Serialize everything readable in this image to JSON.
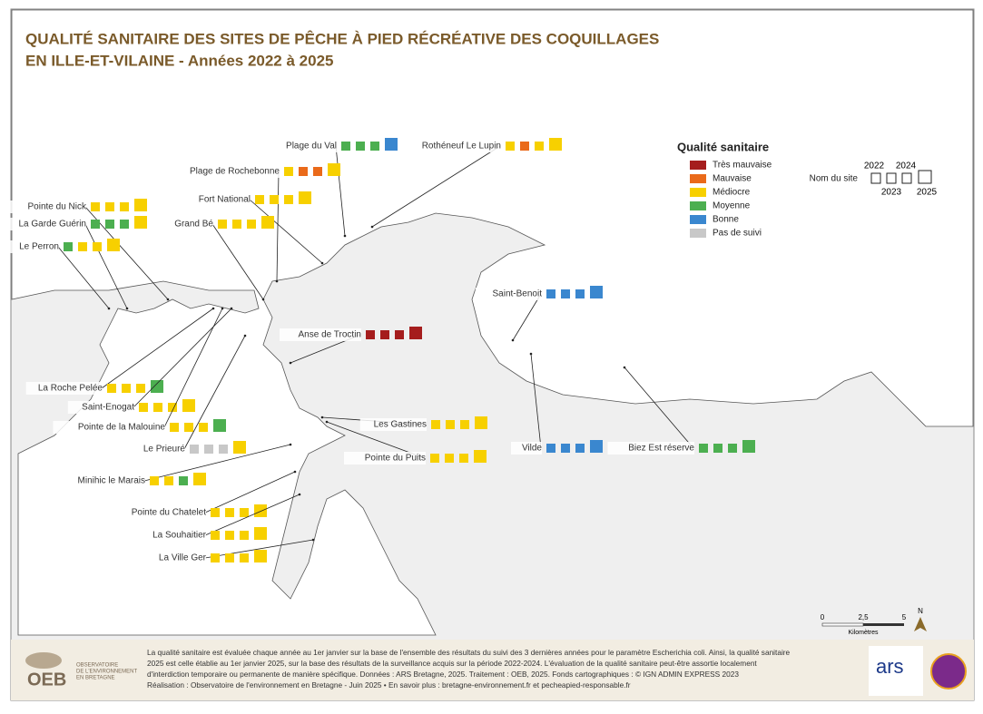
{
  "header": {
    "title_line1": "QUALITÉ SANITAIRE DES SITES DE PÊCHE À PIED RÉCRÉATIVE DES COQUILLAGES",
    "title_line2": "EN ILLE-ET-VILAINE - Années 2022 à 2025"
  },
  "legend": {
    "title": "Qualité sanitaire",
    "items": [
      {
        "label": "Très mauvaise",
        "color": "#a51d1d"
      },
      {
        "label": "Mauvaise",
        "color": "#ea6a1a"
      },
      {
        "label": "Médiocre",
        "color": "#f7d000"
      },
      {
        "label": "Moyenne",
        "color": "#4caf50"
      },
      {
        "label": "Bonne",
        "color": "#3a87cf"
      },
      {
        "label": "Pas de suivi",
        "color": "#c8c8c8"
      }
    ]
  },
  "year_legend": {
    "site_label": "Nom du site",
    "years": [
      "2022",
      "2023",
      "2024",
      "2025"
    ]
  },
  "sites": [
    {
      "name": "Plage du Val",
      "colors": [
        "#4caf50",
        "#4caf50",
        "#4caf50",
        "#3a87cf"
      ]
    },
    {
      "name": "Rothéneuf Le Lupin",
      "colors": [
        "#f7d000",
        "#ea6a1a",
        "#f7d000",
        "#f7d000"
      ]
    },
    {
      "name": "Plage de Rochebonne",
      "colors": [
        "#f7d000",
        "#ea6a1a",
        "#ea6a1a",
        "#f7d000"
      ]
    },
    {
      "name": "Fort National",
      "colors": [
        "#f7d000",
        "#f7d000",
        "#f7d000",
        "#f7d000"
      ]
    },
    {
      "name": "Grand Bé",
      "colors": [
        "#f7d000",
        "#f7d000",
        "#f7d000",
        "#f7d000"
      ]
    },
    {
      "name": "Pointe du Nick",
      "colors": [
        "#f7d000",
        "#f7d000",
        "#f7d000",
        "#f7d000"
      ]
    },
    {
      "name": "La Garde Guérin",
      "colors": [
        "#4caf50",
        "#4caf50",
        "#4caf50",
        "#f7d000"
      ]
    },
    {
      "name": "Le Perron",
      "colors": [
        "#4caf50",
        "#f7d000",
        "#f7d000",
        "#f7d000"
      ]
    },
    {
      "name": "Saint-Benoit",
      "colors": [
        "#3a87cf",
        "#3a87cf",
        "#3a87cf",
        "#3a87cf"
      ]
    },
    {
      "name": "Anse de Troctin",
      "colors": [
        "#a51d1d",
        "#a51d1d",
        "#a51d1d",
        "#a51d1d"
      ]
    },
    {
      "name": "La Roche Pelée",
      "colors": [
        "#f7d000",
        "#f7d000",
        "#f7d000",
        "#4caf50"
      ]
    },
    {
      "name": "Saint-Enogat",
      "colors": [
        "#f7d000",
        "#f7d000",
        "#f7d000",
        "#f7d000"
      ]
    },
    {
      "name": "Pointe de la Malouine",
      "colors": [
        "#f7d000",
        "#f7d000",
        "#f7d000",
        "#4caf50"
      ]
    },
    {
      "name": "Le Prieuré",
      "colors": [
        "#c8c8c8",
        "#c8c8c8",
        "#c8c8c8",
        "#f7d000"
      ]
    },
    {
      "name": "Minihic le Marais",
      "colors": [
        "#f7d000",
        "#f7d000",
        "#4caf50",
        "#f7d000"
      ]
    },
    {
      "name": "Les Gastines",
      "colors": [
        "#f7d000",
        "#f7d000",
        "#f7d000",
        "#f7d000"
      ]
    },
    {
      "name": "Pointe du Puits",
      "colors": [
        "#f7d000",
        "#f7d000",
        "#f7d000",
        "#f7d000"
      ]
    },
    {
      "name": "Vilde",
      "colors": [
        "#3a87cf",
        "#3a87cf",
        "#3a87cf",
        "#3a87cf"
      ]
    },
    {
      "name": "Biez Est réserve",
      "colors": [
        "#4caf50",
        "#4caf50",
        "#4caf50",
        "#4caf50"
      ]
    },
    {
      "name": "Pointe du Chatelet",
      "colors": [
        "#f7d000",
        "#f7d000",
        "#f7d000",
        "#f7d000"
      ]
    },
    {
      "name": "La Souhaitier",
      "colors": [
        "#f7d000",
        "#f7d000",
        "#f7d000",
        "#f7d000"
      ]
    },
    {
      "name": "La Ville Ger",
      "colors": [
        "#f7d000",
        "#f7d000",
        "#f7d000",
        "#f7d000"
      ]
    }
  ],
  "scale": {
    "ticks": [
      "0",
      "2,5",
      "5"
    ],
    "unit": "Kilomètres",
    "north": "N"
  },
  "footer": {
    "logo": "OEB",
    "logo_lines": [
      "OBSERVATOIRE",
      "DE L'ENVIRONNEMENT",
      "EN BRETAGNE"
    ],
    "lines": [
      "La qualité sanitaire est évaluée chaque année au 1er janvier sur la base de l'ensemble des résultats du suivi des 3 dernières années pour le paramètre Escherichia coli. Ainsi, la qualité sanitaire",
      "2025 est celle établie au 1er janvier 2025, sur la base des résultats de la surveillance acquis sur la période 2022-2024. L'évaluation de la qualité sanitaire peut-être assortie localement",
      "d'interdiction temporaire ou permanente de manière spécifique. Données : ARS Bretagne, 2025. Traitement : OEB, 2025. Fonds cartographiques : © IGN ADMIN EXPRESS 2023",
      "Réalisation : Observatoire de l'environnement en Bretagne - Juin 2025 • En savoir plus : bretagne-environnement.fr et pecheapied-responsable.fr"
    ],
    "ars": "ars"
  }
}
